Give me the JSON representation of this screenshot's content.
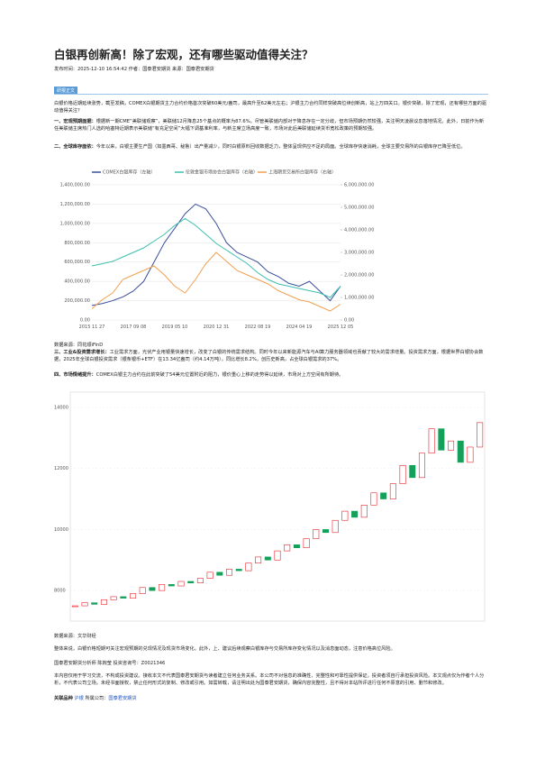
{
  "header": {
    "title": "白银再创新高！除了宏观，还有哪些驱动值得关注？",
    "meta": "发布时间：2025-12-10 16:54:42 作者：国泰君安期货 来源：国泰君安期货"
  },
  "tag": "研报正文",
  "intro": "白银价格近期延续涨势，截至发稿，COMEX白银期货主力合约价格首次突破60美元/盎司，最高升至62美元左右；沪银主力合约同样突破高位续创新高，站上万四关口。银价突破，除了宏观，还有哪些方面的驱动值得关注？",
  "sections": [
    {
      "heading": "一、宏观预期面据：",
      "text": "根据新一期CME“美联储观察”，美联储12月降息25个基点的概率为87.6%。尽管美联储内部对于降息存在一定分歧，但市场预期仍然较强，关注明天凌晨议息落地情况。此外，日前作为新任美联储主席热门人选的哈塞特近期表示美联储“有充足空间”大幅下调基准利率，与新主席立场高度一致，市场对此后美联储延续货币宽松政策的预期较强。"
    },
    {
      "heading": "二、全球库存面依：",
      "text": "今年以来，白银主要生产国（如墨西哥、秘鲁）出产量减少，同时白银原料回收数据乏力，整体呈现供应不足的局面。全球库存快速消耗，全球主要交易所的白银库存已降至低位。"
    },
    {
      "heading": "三、工业&投资需求增长：",
      "text": "工业需求方面，光伏产业用银量快速增长，改变了白银的传统需求结构。同时今年以来新能源汽车与AI算力服务器领域也贡献了较大的需求增量。投资需求方面，根据世界白银协会数据，2025年全球白银投资需求（银条银币+ETF）在13.34亿盎司（约4.14万吨），同比增长8.2%，创历史新高，占全球白银需求的37%。"
    },
    {
      "heading": "四、市场情绪提升：",
      "text": "COMEX白银主力合约在此前突破了54美元位置附近的阻力，银价重心上移的走势得以延续，市场对上方空间有所期待。"
    }
  ],
  "captions": [
    "数据来源：同花顺iFinD",
    "数据来源：文华财经"
  ],
  "conclusion": "整体来说，白银价格短期可关注宏观预期的兑现情况及现货市场变化。此外，上、建议后续观察白银库存与交易所库存变化情况以及消息面动态，注意价格高位风险。",
  "analyst": "国泰君安期货分析师 陈婉莹 投资咨询号：Z0021346",
  "disclaimer": "本内容仅用于学习交流，不构成投资建议。接收本文不代表国泰君安期货与读者建立任何业务关系。本公司不对信息的准确性、完整性和可靠性提供保证。投资者须自行承担投资风险。本文观点仅为作者个人分析，不代表公司立场。未经书面授权，禁止任何形式的复制、修改或引用。如需转载，请注明出处为国泰君安期货，确保内容完整性，且不得对本站所评进行任何不原意的引用、删节和修改。",
  "footer": {
    "label": "关联品种",
    "product": "沪银",
    "company_label": "所属公司：",
    "company": "国泰君安期货"
  },
  "chart_data": [
    {
      "type": "line",
      "categories": [
        "2015 11 27",
        null,
        null,
        null,
        "2017 09 08",
        null,
        null,
        null,
        "2019 05 10",
        null,
        null,
        null,
        "2020 12 31",
        null,
        null,
        null,
        "2022 08 19",
        null,
        null,
        null,
        "2024 04 19",
        null,
        null,
        null,
        "2025 12 05"
      ],
      "ylim": [
        0,
        1400000
      ],
      "yticks": [
        {
          "value": 0,
          "label": "0.00"
        },
        {
          "value": 200000,
          "label": "200,000.00"
        },
        {
          "value": 400000,
          "label": "400,000.00"
        },
        {
          "value": 600000,
          "label": "600,000.00"
        },
        {
          "value": 800000,
          "label": "800,000.00"
        },
        {
          "value": 1000000,
          "label": "1,000,000.00"
        },
        {
          "value": 1200000,
          "label": "1,200,000.00"
        },
        {
          "value": 1400000,
          "label": "1,400,000.00"
        }
      ],
      "y2lim": [
        0,
        6000000
      ],
      "y2ticks": [
        {
          "value": 0,
          "label": "0.00"
        },
        {
          "value": 1000000,
          "label": "1,000,000.00"
        },
        {
          "value": 2000000,
          "label": "2,000,000.00"
        },
        {
          "value": 3000000,
          "label": "3,000,000.00"
        },
        {
          "value": 4000000,
          "label": "4,000,000.00"
        },
        {
          "value": 5000000,
          "label": "5,000,000.00"
        },
        {
          "value": 6000000,
          "label": "6,000,000.00"
        }
      ],
      "grid": true,
      "series": [
        {
          "name": "COMEX白银库存（左轴）",
          "color": "#3b4f9c",
          "values": [
            150000,
            170000,
            200000,
            240000,
            300000,
            400000,
            600000,
            800000,
            950000,
            1100000,
            1200000,
            1150000,
            1000000,
            800000,
            700000,
            650000,
            600000,
            500000,
            450000,
            380000,
            350000,
            400000,
            300000,
            200000,
            350000
          ]
        },
        {
          "name": "伦敦金银市场协会白银库存（右轴）",
          "color": "#3bbfad",
          "axis": "y2",
          "values": [
            2400000,
            2500000,
            2600000,
            2800000,
            3000000,
            3200000,
            3500000,
            3800000,
            4200000,
            4500000,
            4200000,
            3800000,
            3400000,
            3100000,
            2800000,
            2500000,
            2100000,
            1800000,
            1600000,
            1500000,
            1400000,
            1300000,
            1200000,
            1000000,
            1500000
          ]
        },
        {
          "name": "上海期货交易所白银库存（右轴）",
          "color": "#f0a050",
          "axis": "y2",
          "values": [
            500000,
            900000,
            1200000,
            1800000,
            2000000,
            2200000,
            2400000,
            2000000,
            1500000,
            1200000,
            1800000,
            2500000,
            3000000,
            2600000,
            2200000,
            2000000,
            1800000,
            1600000,
            1300000,
            1100000,
            900000,
            800000,
            600000,
            400000,
            700000
          ]
        }
      ]
    },
    {
      "type": "candlestick",
      "ylim": [
        7000,
        14500
      ],
      "yticks": [
        8000,
        10000,
        12000,
        14000
      ],
      "up_color": "#e8222a",
      "down_color": "#14a05a",
      "values": [
        7500,
        7600,
        7550,
        7700,
        7800,
        7750,
        7900,
        8100,
        8000,
        8200,
        8150,
        8300,
        8250,
        8400,
        8600,
        8500,
        8700,
        8650,
        8900,
        9100,
        9000,
        9300,
        9500,
        9400,
        9700,
        10000,
        9900,
        10300,
        10600,
        10400,
        10800,
        11200,
        11000,
        11500,
        12100,
        11700,
        12500,
        13300,
        12600,
        12900,
        12200,
        12700,
        13500
      ]
    }
  ]
}
